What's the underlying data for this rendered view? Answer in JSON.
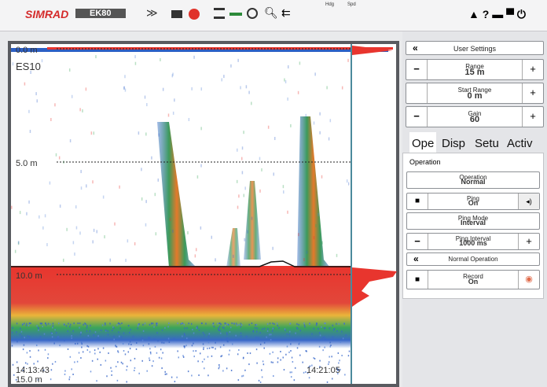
{
  "toolbar": {
    "brand": "SIMRAD",
    "product": "EK80",
    "indicators": [
      "Hdg",
      "Spd"
    ]
  },
  "echogram": {
    "channel": "ES10",
    "depth_labels": [
      "0.0 m",
      "5.0 m",
      "10.0 m"
    ],
    "bottom_depth": "15.0 m",
    "start_time": "14:13:43",
    "end_time": "14:21:05"
  },
  "settings": {
    "title": "User Settings",
    "range": {
      "label": "Range",
      "value": "15 m"
    },
    "start_range": {
      "label": "Start Range",
      "value": "0 m"
    },
    "gain": {
      "label": "Gain",
      "value": "60"
    }
  },
  "tabs": [
    "Ope",
    "Disp",
    "Setu",
    "Activ"
  ],
  "operation": {
    "heading": "Operation",
    "controls": [
      {
        "label": "Operation",
        "value": "Normal"
      },
      {
        "label": "Ping",
        "value": "On"
      },
      {
        "label": "Ping Mode",
        "value": "Interval"
      },
      {
        "label": "Ping Interval",
        "value": "1000 ms"
      }
    ],
    "mode_button": "Normal Operation",
    "record": {
      "label": "Record",
      "value": "On"
    }
  }
}
